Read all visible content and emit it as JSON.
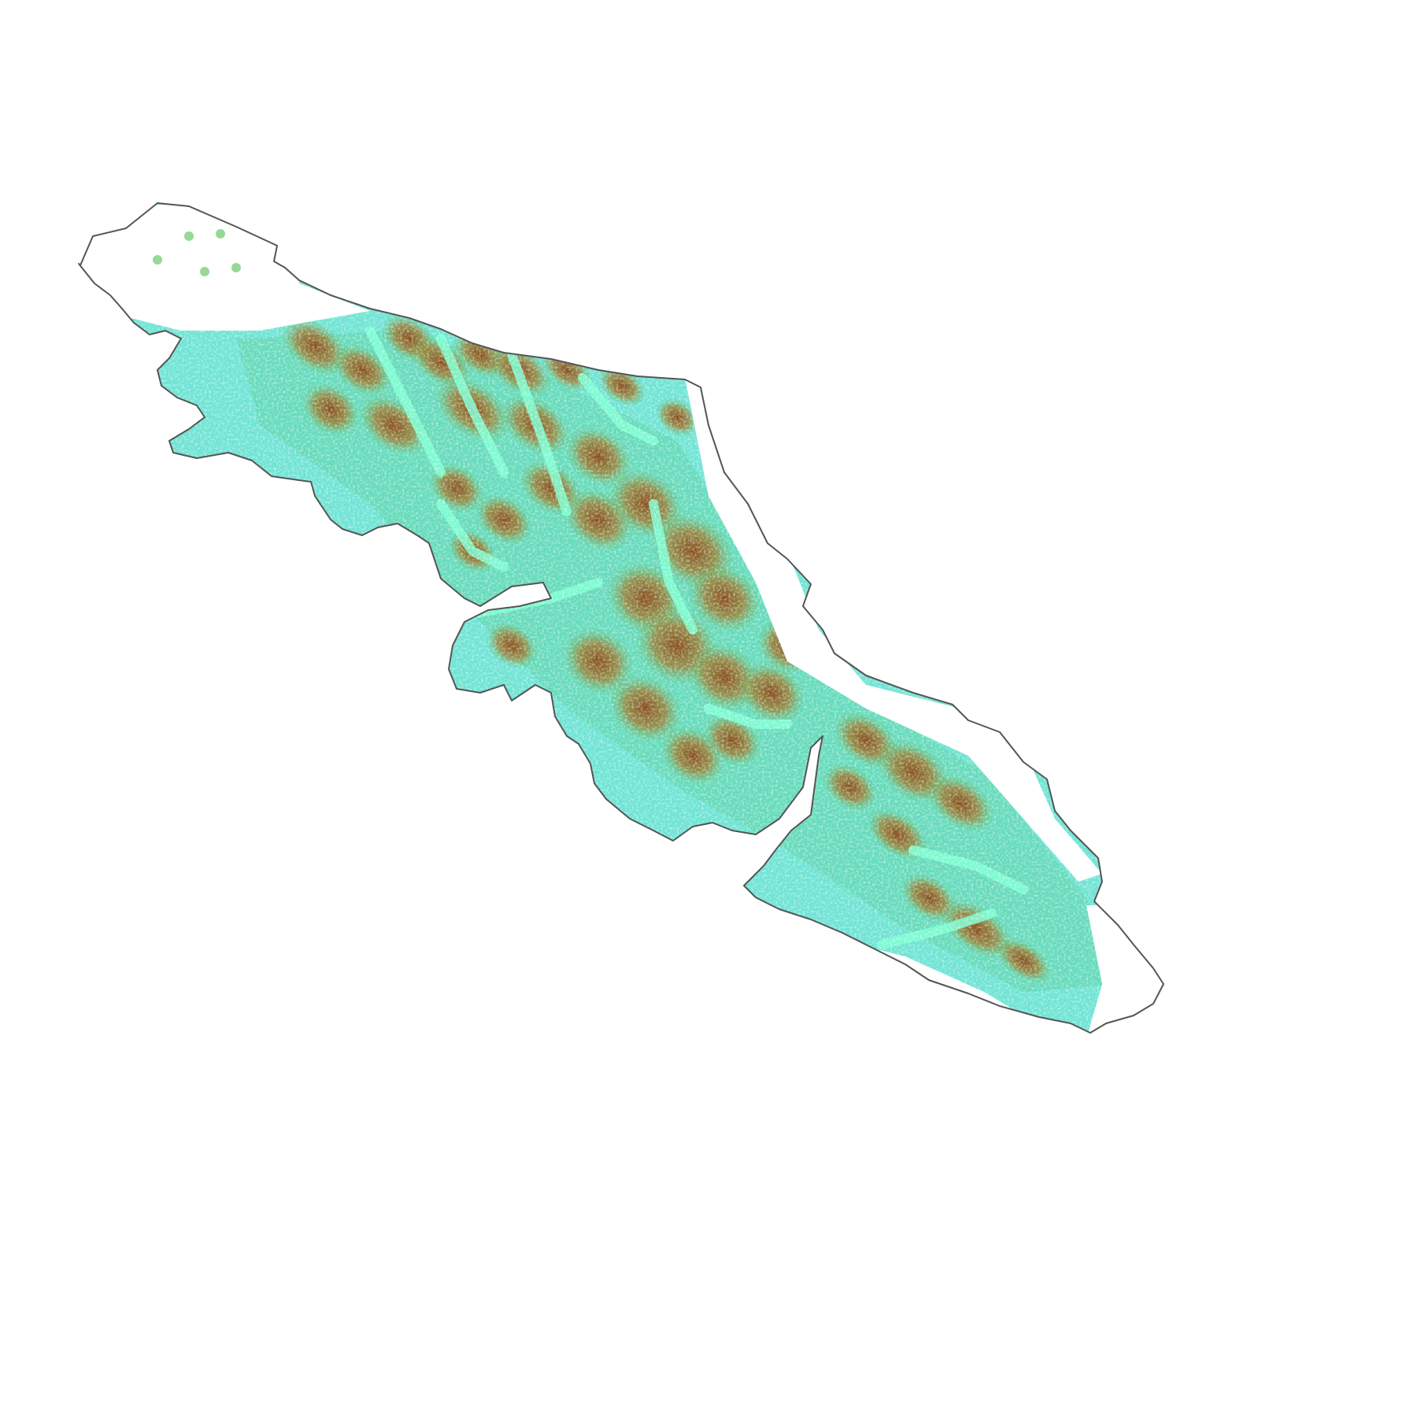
{
  "map": {
    "background_color": "#ffffff",
    "outline_color": "#555555",
    "color_ramp": [
      "#7fffd4",
      "#5ee0c8",
      "#4fcdb5",
      "#66c06a",
      "#8aa83a",
      "#a87a22",
      "#8b4513"
    ],
    "layers": [
      {
        "name": "coastline-outline",
        "kind": "vector-outline"
      },
      {
        "name": "elevation-raster",
        "kind": "classified-raster"
      }
    ]
  }
}
